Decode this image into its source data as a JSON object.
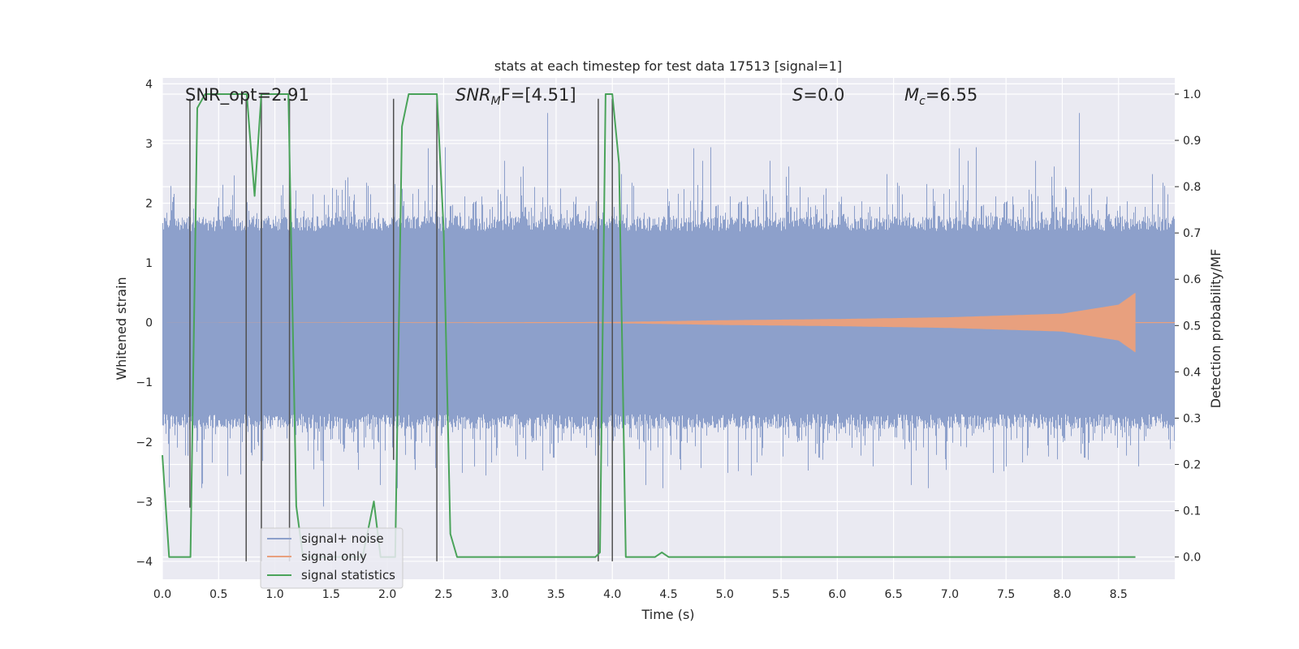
{
  "chart_data": {
    "type": "line",
    "title": "stats at each timestep for test data 17513 [signal=1]",
    "xlabel": "Time (s)",
    "ylabel_left": "Whitened strain",
    "ylabel_right": "Detection probability/MF",
    "xlim": [
      0,
      9
    ],
    "ylim_left": [
      -4.3,
      4.1
    ],
    "ylim_right": [
      -0.048,
      1.035
    ],
    "x_ticks": [
      0.0,
      0.5,
      1.0,
      1.5,
      2.0,
      2.5,
      3.0,
      3.5,
      4.0,
      4.5,
      5.0,
      5.5,
      6.0,
      6.5,
      7.0,
      7.5,
      8.0,
      8.5
    ],
    "x_tick_labels": [
      "0.0",
      "0.5",
      "1.0",
      "1.5",
      "2.0",
      "2.5",
      "3.0",
      "3.5",
      "4.0",
      "4.5",
      "5.0",
      "5.5",
      "6.0",
      "6.5",
      "7.0",
      "7.5",
      "8.0",
      "8.5"
    ],
    "y_left_ticks": [
      4,
      3,
      2,
      1,
      0,
      -1,
      -2,
      -3,
      -4
    ],
    "y_left_tick_labels": [
      "4",
      "3",
      "2",
      "1",
      "0",
      "−1",
      "−2",
      "−3",
      "−4"
    ],
    "y_right_ticks": [
      1.0,
      0.9,
      0.8,
      0.7,
      0.6,
      0.5,
      0.4,
      0.3,
      0.2,
      0.1,
      0.0
    ],
    "y_right_tick_labels": [
      "1.0",
      "0.9",
      "0.8",
      "0.7",
      "0.6",
      "0.5",
      "0.4",
      "0.3",
      "0.2",
      "0.1",
      "0.0"
    ],
    "annotations": {
      "snr_opt": "SNR_opt=2.91",
      "snr_mf_sym": "SNR",
      "snr_mf_sub": "M",
      "snr_mf_rest": "F=[4.51]",
      "s_sym": "S",
      "s_rest": "=0.0",
      "mc_sym": "M",
      "mc_sub": "c",
      "mc_rest": "=6.55"
    },
    "legend": {
      "position": "lower-left",
      "entries": [
        "signal+ noise",
        "signal only",
        "signal statistics"
      ]
    },
    "colors": {
      "noise": "#8da0cb",
      "signal": "#e8a07e",
      "stats": "#4aa35a",
      "vlines": "#505050",
      "axes_bg": "#eaeaf2",
      "grid": "#ffffff"
    },
    "series": [
      {
        "name": "signal+ noise",
        "kind": "noise",
        "sample_rate": 2048,
        "duration": 9.0,
        "core_amplitude": 1.7,
        "peak_amplitude": 3.6
      },
      {
        "name": "signal only",
        "kind": "chirp",
        "merger_time": 8.65,
        "amplitude_points": [
          [
            0.0,
            0.0
          ],
          [
            4.0,
            0.01
          ],
          [
            5.0,
            0.04
          ],
          [
            6.0,
            0.06
          ],
          [
            7.0,
            0.09
          ],
          [
            8.0,
            0.15
          ],
          [
            8.5,
            0.3
          ],
          [
            8.65,
            0.5
          ]
        ]
      },
      {
        "name": "signal statistics",
        "kind": "line",
        "x": [
          0.0,
          0.06,
          0.12,
          0.25,
          0.31,
          0.38,
          0.44,
          0.75,
          0.82,
          0.88,
          0.94,
          1.12,
          1.19,
          1.25,
          1.78,
          1.88,
          1.94,
          2.07,
          2.13,
          2.19,
          2.44,
          2.5,
          2.56,
          2.62,
          3.0,
          3.5,
          3.85,
          3.89,
          3.94,
          4.0,
          4.06,
          4.12,
          4.38,
          4.44,
          4.5,
          5.0,
          6.0,
          7.0,
          8.0,
          8.65
        ],
        "y": [
          0.22,
          0.0,
          0.0,
          0.0,
          0.97,
          1.0,
          1.0,
          1.0,
          0.78,
          1.0,
          1.0,
          1.0,
          0.11,
          0.0,
          0.0,
          0.12,
          0.0,
          0.0,
          0.93,
          1.0,
          1.0,
          0.71,
          0.05,
          0.0,
          0.0,
          0.0,
          0.0,
          0.01,
          1.0,
          1.0,
          0.85,
          0.0,
          0.0,
          0.01,
          0.0,
          0.0,
          0.0,
          0.0,
          0.0,
          0.0
        ]
      }
    ],
    "vertical_lines": [
      {
        "x": 0.245,
        "y_bottom": -3.1,
        "y_top": 3.75
      },
      {
        "x": 0.745,
        "y_bottom": -4.0,
        "y_top": 3.75
      },
      {
        "x": 0.88,
        "y_bottom": -4.0,
        "y_top": 3.75
      },
      {
        "x": 1.13,
        "y_bottom": -4.0,
        "y_top": 3.75
      },
      {
        "x": 2.055,
        "y_bottom": -2.3,
        "y_top": 3.75
      },
      {
        "x": 2.44,
        "y_bottom": -4.0,
        "y_top": 3.75
      },
      {
        "x": 3.875,
        "y_bottom": -4.0,
        "y_top": 3.75
      },
      {
        "x": 4.0,
        "y_bottom": -4.0,
        "y_top": 3.75
      }
    ]
  }
}
